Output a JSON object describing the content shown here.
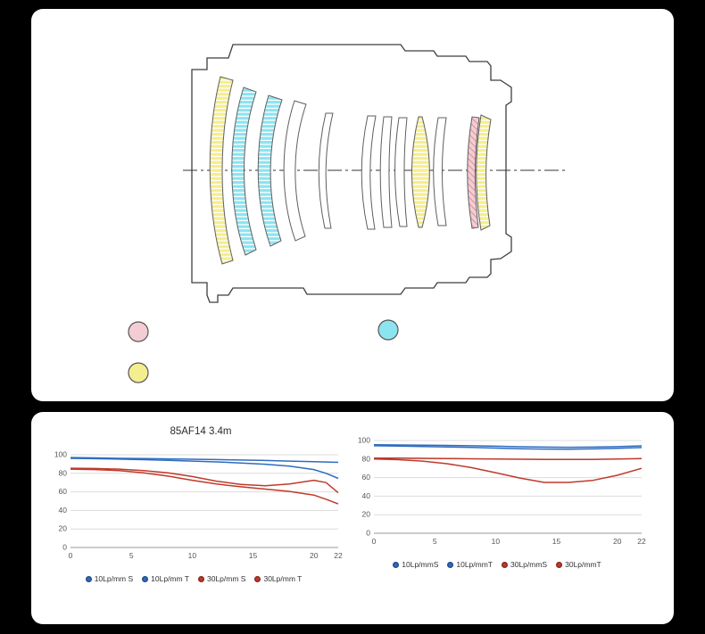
{
  "lens": {
    "colors": {
      "yellow": "#f5ee8e",
      "cyan": "#8ce4f0",
      "pink": "#f3cdd3",
      "hatch_light": "#ffffff",
      "hatch_pink_line": "#dd8f99",
      "outline": "#5f5f5f",
      "barrel": "#3f3f3f",
      "axis": "#333333",
      "swatch_ring": "#555555"
    }
  },
  "chart_data": [
    {
      "type": "line",
      "title": "85AF14 3.4m",
      "xlabel": "",
      "ylabel": "",
      "xlim": [
        0,
        22
      ],
      "ylim": [
        0,
        100
      ],
      "xticks": [
        0,
        5,
        10,
        15,
        20,
        22
      ],
      "yticks": [
        0,
        20,
        40,
        60,
        80,
        100
      ],
      "grid": true,
      "legend_position": "bottom",
      "x": [
        0,
        2,
        4,
        6,
        8,
        10,
        12,
        14,
        16,
        18,
        20,
        21,
        22
      ],
      "series": [
        {
          "name": "10Lp/mm S",
          "color": "#2f6cbf",
          "values": [
            97,
            96.6,
            96.2,
            95.9,
            95.6,
            95.2,
            94.8,
            94.3,
            93.8,
            93.2,
            92.6,
            92.2,
            91.8
          ]
        },
        {
          "name": "10Lp/mm T",
          "color": "#2f6cbf",
          "values": [
            96.2,
            95.8,
            95.3,
            94.7,
            94,
            93.2,
            92.3,
            91.2,
            89.8,
            87.8,
            84,
            80,
            74.5
          ]
        },
        {
          "name": "30Lp/mm S",
          "color": "#bf3a2b",
          "values": [
            85.5,
            85.2,
            84.5,
            83,
            80.5,
            76.5,
            71.5,
            68,
            66.5,
            68.5,
            72.5,
            70,
            59
          ]
        },
        {
          "name": "30Lp/mm T",
          "color": "#bf3a2b",
          "values": [
            84.5,
            84,
            83,
            80.5,
            77,
            72.5,
            68.5,
            65.5,
            63,
            60.5,
            56.5,
            52,
            47
          ]
        }
      ]
    },
    {
      "type": "line",
      "title": "",
      "xlabel": "",
      "ylabel": "",
      "xlim": [
        0,
        22
      ],
      "ylim": [
        0,
        100
      ],
      "xticks": [
        0,
        5,
        10,
        15,
        20,
        22
      ],
      "yticks": [
        0,
        20,
        40,
        60,
        80,
        100
      ],
      "grid": true,
      "legend_position": "bottom",
      "x": [
        0,
        2,
        4,
        6,
        8,
        10,
        12,
        14,
        16,
        18,
        20,
        22
      ],
      "series": [
        {
          "name": "10Lp/mmS",
          "color": "#2f6cbf",
          "values": [
            95.5,
            95.2,
            95,
            94.7,
            94.3,
            93.8,
            93.3,
            92.9,
            92.7,
            92.9,
            93.4,
            94.2
          ]
        },
        {
          "name": "10Lp/mmT",
          "color": "#2f6cbf",
          "values": [
            94.3,
            94,
            93.6,
            93.1,
            92.5,
            91.8,
            91.2,
            90.8,
            90.7,
            91,
            91.6,
            92.4
          ]
        },
        {
          "name": "30Lp/mmS",
          "color": "#bf3a2b",
          "values": [
            81,
            81,
            80.8,
            80.6,
            80.3,
            80,
            79.8,
            79.6,
            79.5,
            79.6,
            80,
            80.6
          ]
        },
        {
          "name": "30Lp/mmT",
          "color": "#bf3a2b",
          "values": [
            80,
            79.3,
            77.8,
            75,
            70.8,
            65.3,
            59.5,
            54.8,
            54.8,
            57,
            62.5,
            70
          ]
        }
      ]
    }
  ]
}
